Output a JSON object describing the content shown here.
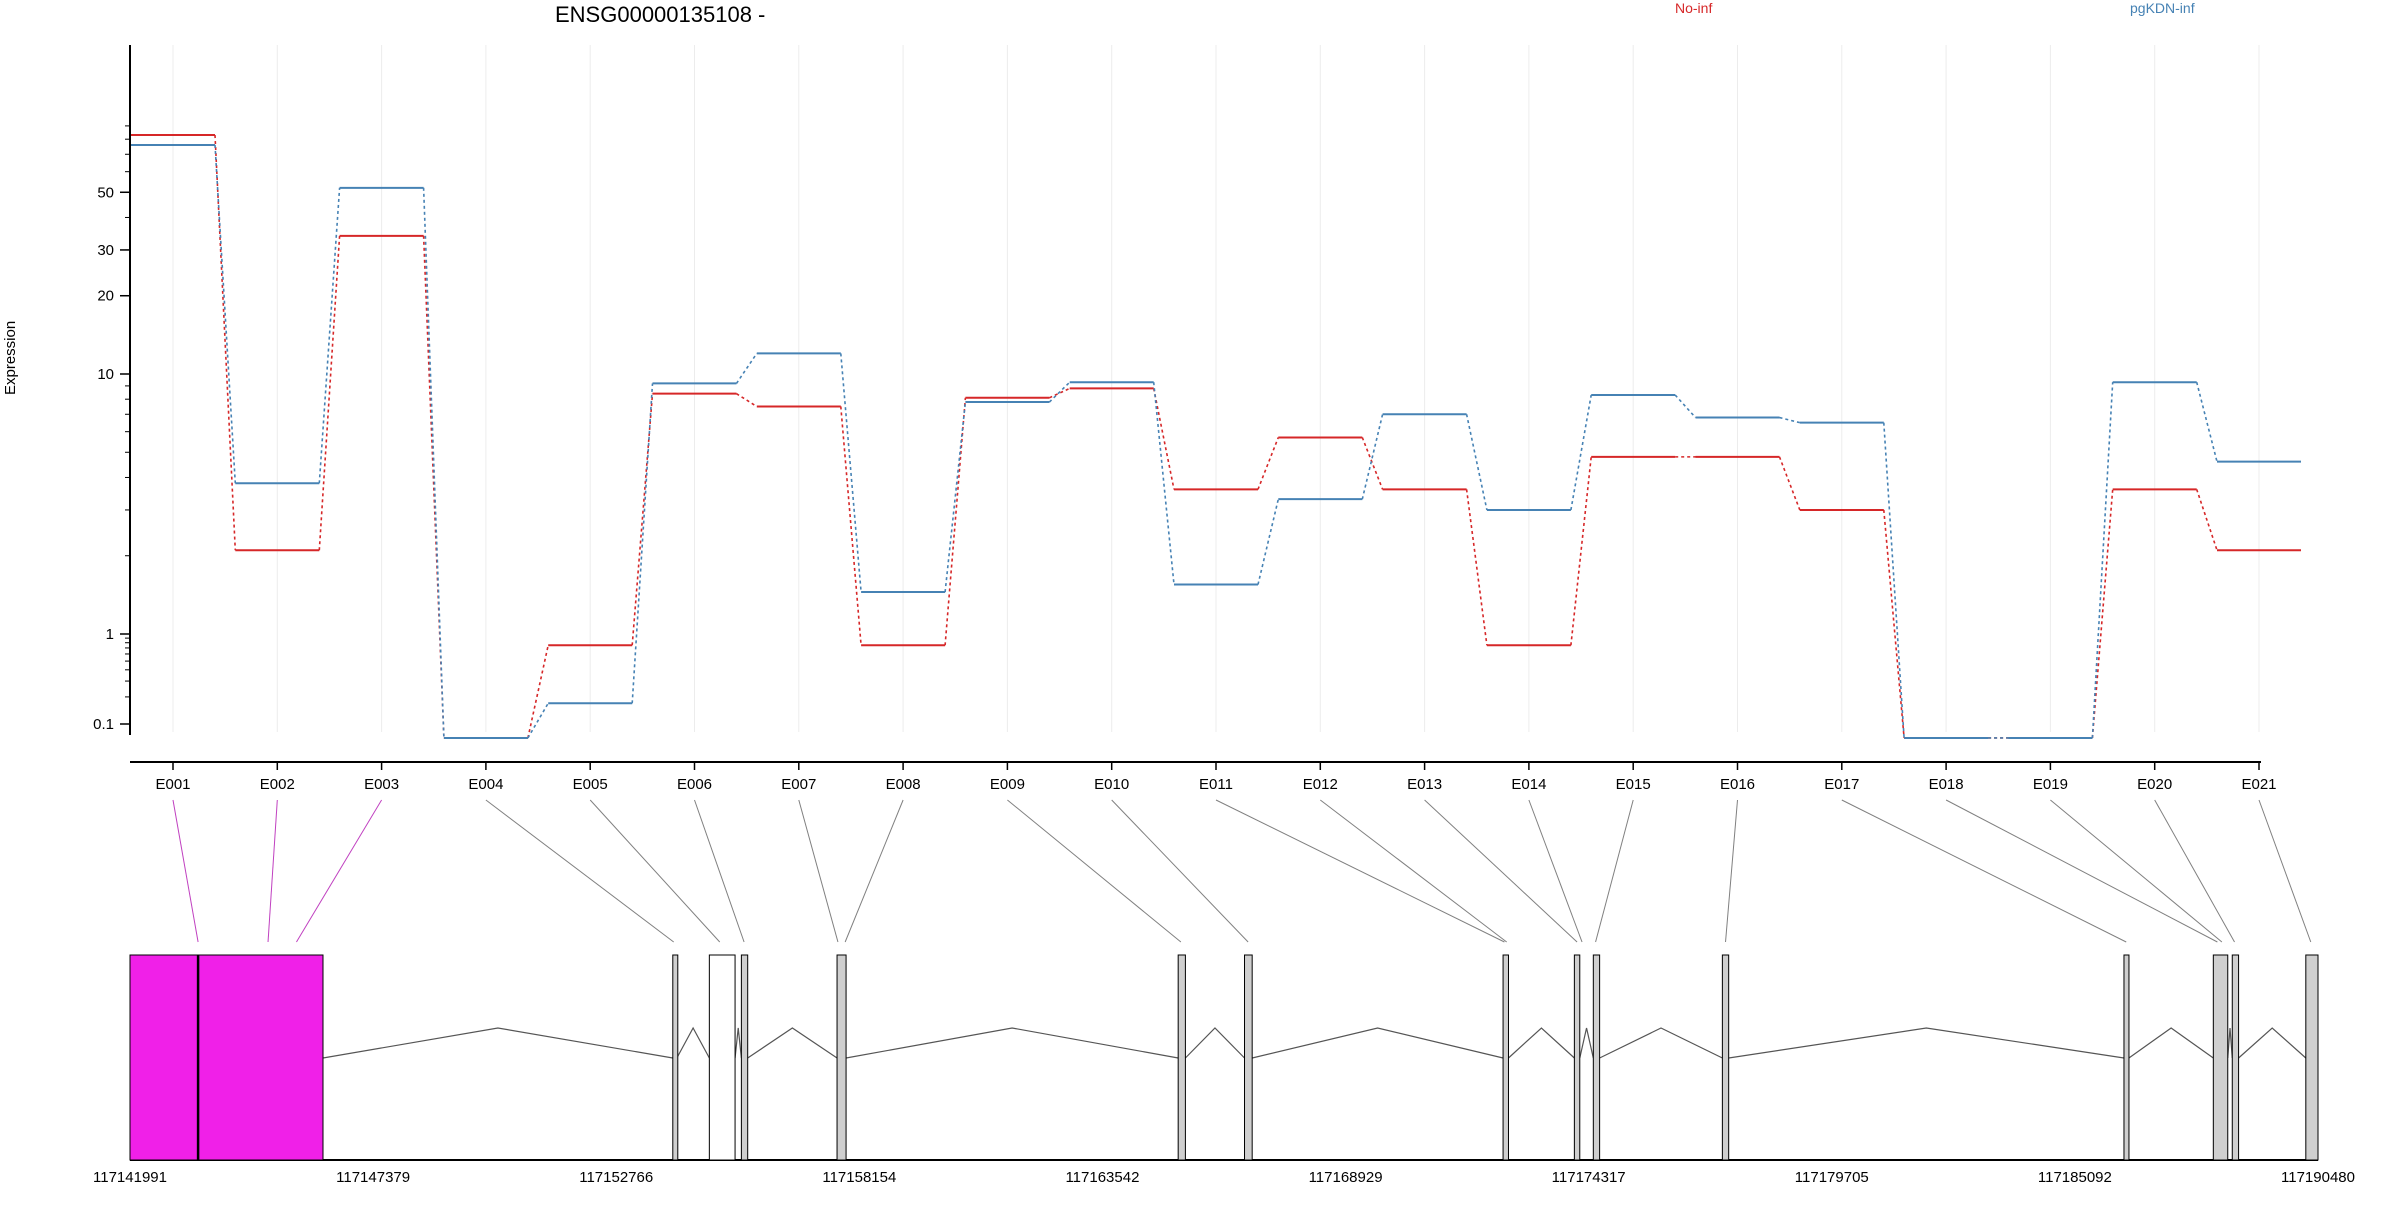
{
  "chart_data": {
    "type": "line",
    "title": "ENSG00000135108 -",
    "xlabel": "",
    "ylabel": "Expression",
    "yscale": "log",
    "y_ticks": [
      "0.1",
      "1",
      "10",
      "20",
      "30",
      "50"
    ],
    "y_tick_values": [
      0.1,
      1,
      10,
      20,
      30,
      50
    ],
    "categories": [
      "E001",
      "E002",
      "E003",
      "E004",
      "E005",
      "E006",
      "E007",
      "E008",
      "E009",
      "E010",
      "E011",
      "E012",
      "E013",
      "E014",
      "E015",
      "E016",
      "E017",
      "E018",
      "E019",
      "E020",
      "E021"
    ],
    "series": [
      {
        "name": "No-inf",
        "color": "#d62728",
        "values": [
          83,
          2.1,
          34,
          0.07,
          0.75,
          8.4,
          7.5,
          0.75,
          8.1,
          8.8,
          3.6,
          5.7,
          3.6,
          0.75,
          4.8,
          4.8,
          3.0,
          0.07,
          0.07,
          3.6,
          2.1
        ]
      },
      {
        "name": "pgKDN-inf",
        "color": "#4682b4",
        "values": [
          76,
          3.8,
          52,
          0.07,
          0.17,
          9.2,
          12.0,
          1.45,
          7.8,
          9.3,
          1.55,
          3.3,
          7.0,
          3.0,
          8.3,
          6.8,
          6.5,
          0.07,
          0.07,
          9.3,
          4.6
        ]
      }
    ],
    "gene_model": {
      "coordinate_labels": [
        "117141991",
        "117147379",
        "117152766",
        "117158154",
        "117163542",
        "117168929",
        "117174317",
        "117179705",
        "117185092",
        "117190480"
      ],
      "coord_range": [
        117141991,
        117190480
      ],
      "exons": [
        {
          "start": 117141991,
          "end": 117146268,
          "style": "highlight"
        },
        {
          "start": 117154020,
          "end": 117154110,
          "style": "plain"
        },
        {
          "start": 117154830,
          "end": 117155400,
          "style": "open"
        },
        {
          "start": 117155540,
          "end": 117155680,
          "style": "plain"
        },
        {
          "start": 117157660,
          "end": 117157860,
          "style": "plain"
        },
        {
          "start": 117165220,
          "end": 117165380,
          "style": "plain"
        },
        {
          "start": 117166690,
          "end": 117166860,
          "style": "plain"
        },
        {
          "start": 117172420,
          "end": 117172540,
          "style": "plain"
        },
        {
          "start": 117174000,
          "end": 117174120,
          "style": "plain"
        },
        {
          "start": 117174420,
          "end": 117174560,
          "style": "plain"
        },
        {
          "start": 117177280,
          "end": 117177420,
          "style": "plain"
        },
        {
          "start": 117186180,
          "end": 117186290,
          "style": "plain"
        },
        {
          "start": 117188160,
          "end": 117188480,
          "style": "plain"
        },
        {
          "start": 117188580,
          "end": 117188720,
          "style": "plain"
        },
        {
          "start": 117190210,
          "end": 117190480,
          "style": "plain"
        }
      ],
      "exon_connector_targets": [
        117143500,
        117145050,
        117145680,
        117154040,
        117155060,
        117155600,
        117157680,
        117157840,
        117165280,
        117166770,
        117172450,
        117172500,
        117174060,
        117174170,
        117174470,
        117177350,
        117186230,
        117188250,
        117188350,
        117188630,
        117190320
      ],
      "colors": {
        "highlight": "#f020e8",
        "plain": "#cfcfcf",
        "open": "#ffffff",
        "connector_highlight": "#c040c0",
        "connector": "#808080"
      }
    }
  }
}
